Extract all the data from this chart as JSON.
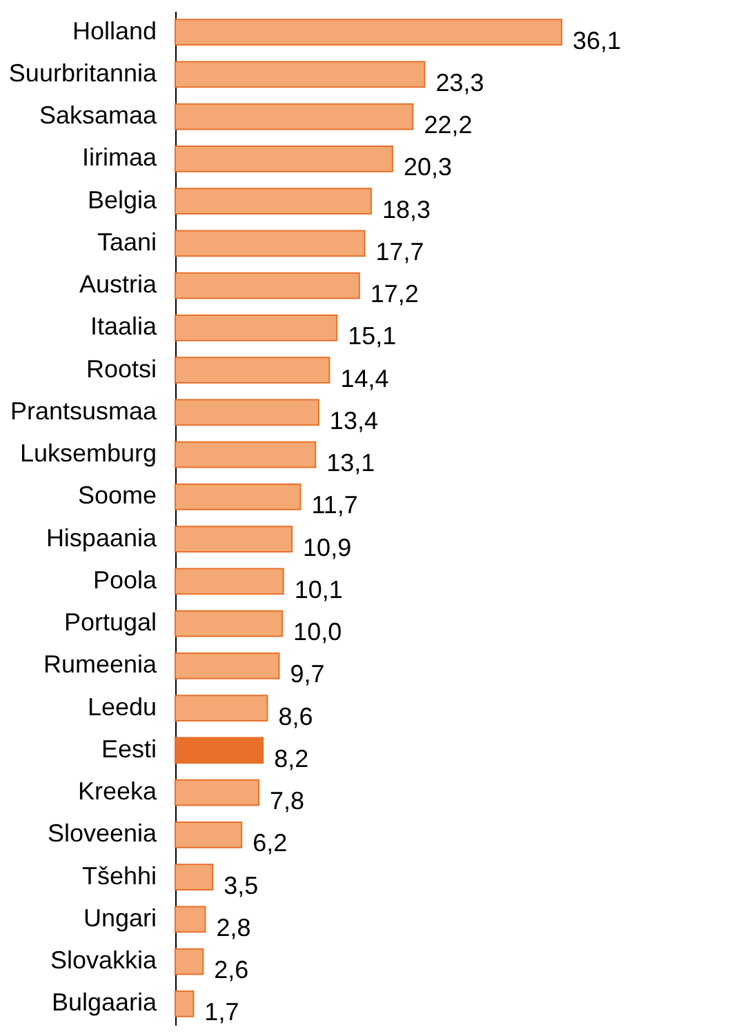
{
  "chart_data": {
    "type": "bar",
    "orientation": "horizontal",
    "categories": [
      "Holland",
      "Suurbritannia",
      "Saksamaa",
      "Iirimaa",
      "Belgia",
      "Taani",
      "Austria",
      "Itaalia",
      "Rootsi",
      "Prantsusmaa",
      "Luksemburg",
      "Soome",
      "Hispaania",
      "Poola",
      "Portugal",
      "Rumeenia",
      "Leedu",
      "Eesti",
      "Kreeka",
      "Sloveenia",
      "Tšehhi",
      "Ungari",
      "Slovakkia",
      "Bulgaaria"
    ],
    "values": [
      36.1,
      23.3,
      22.2,
      20.3,
      18.3,
      17.7,
      17.2,
      15.1,
      14.4,
      13.4,
      13.1,
      11.7,
      10.9,
      10.1,
      10.0,
      9.7,
      8.6,
      8.2,
      7.8,
      6.2,
      3.5,
      2.8,
      2.6,
      1.7
    ],
    "value_labels": [
      "36,1",
      "23,3",
      "22,2",
      "20,3",
      "18,3",
      "17,7",
      "17,2",
      "15,1",
      "14,4",
      "13,4",
      "13,1",
      "11,7",
      "10,9",
      "10,1",
      "10,0",
      "9,7",
      "8,6",
      "8,2",
      "7,8",
      "6,2",
      "3,5",
      "2,8",
      "2,6",
      "1,7"
    ],
    "colors": [
      "#f4a874",
      "#f4a874",
      "#f4a874",
      "#f4a874",
      "#f4a874",
      "#f4a874",
      "#f4a874",
      "#f4a874",
      "#f4a874",
      "#f4a874",
      "#f4a874",
      "#f4a874",
      "#f4a874",
      "#f4a874",
      "#f4a874",
      "#f4a874",
      "#f4a874",
      "#e8702a",
      "#f4a874",
      "#f4a874",
      "#f4a874",
      "#f4a874",
      "#f4a874",
      "#f4a874"
    ],
    "tick_labels": "y"
  }
}
